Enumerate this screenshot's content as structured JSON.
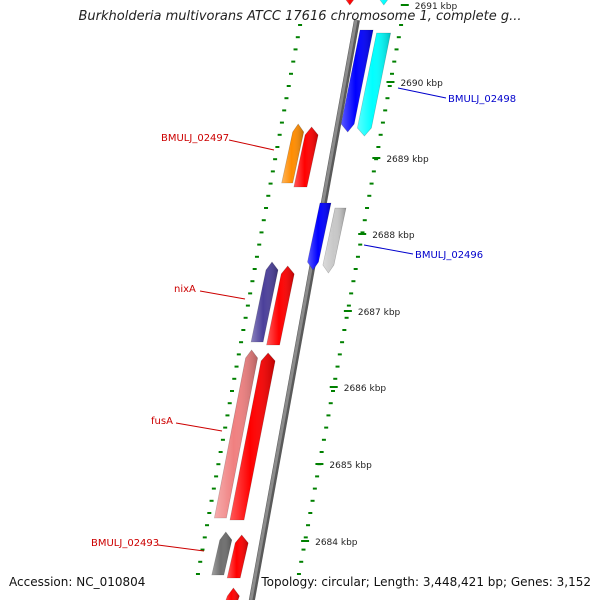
{
  "title": "Burkholderia multivorans ATCC 17616 chromosome 1, complete g...",
  "footer": {
    "accession": "Accession: NC_010804",
    "topology": "Topology: circular; Length: 3,448,421 bp; Genes: 3,152"
  },
  "colors": {
    "backbone": "#8c8c8c",
    "tick": "#008000",
    "label_forward": "#cc0000",
    "label_reverse": "#0000cc",
    "gene_red": "#ff0000",
    "gene_blue": "#0000ff",
    "gene_cyan": "#00ffff",
    "gene_orange": "#ff8c00",
    "gene_navy": "#4b3f9a",
    "gene_pink": "#f08080",
    "gene_gray": "#c8c8c8",
    "gene_darkgray": "#6e6e6e"
  },
  "kbp_markers": [
    {
      "kbp": 2691,
      "label": "2691 kbp"
    },
    {
      "kbp": 2690,
      "label": "2690 kbp"
    },
    {
      "kbp": 2689,
      "label": "2689 kbp"
    },
    {
      "kbp": 2688,
      "label": "2688 kbp"
    },
    {
      "kbp": 2687,
      "label": "2687 kbp"
    },
    {
      "kbp": 2686,
      "label": "2686 kbp"
    },
    {
      "kbp": 2685,
      "label": "2685 kbp"
    },
    {
      "kbp": 2684,
      "label": "2684 kbp"
    }
  ],
  "gene_labels": [
    {
      "name": "BMULJ_02498",
      "strand": "reverse"
    },
    {
      "name": "BMULJ_02497",
      "strand": "forward"
    },
    {
      "name": "BMULJ_02496",
      "strand": "reverse"
    },
    {
      "name": "nixA",
      "strand": "forward"
    },
    {
      "name": "fusA",
      "strand": "forward"
    },
    {
      "name": "BMULJ_02493",
      "strand": "forward"
    }
  ]
}
